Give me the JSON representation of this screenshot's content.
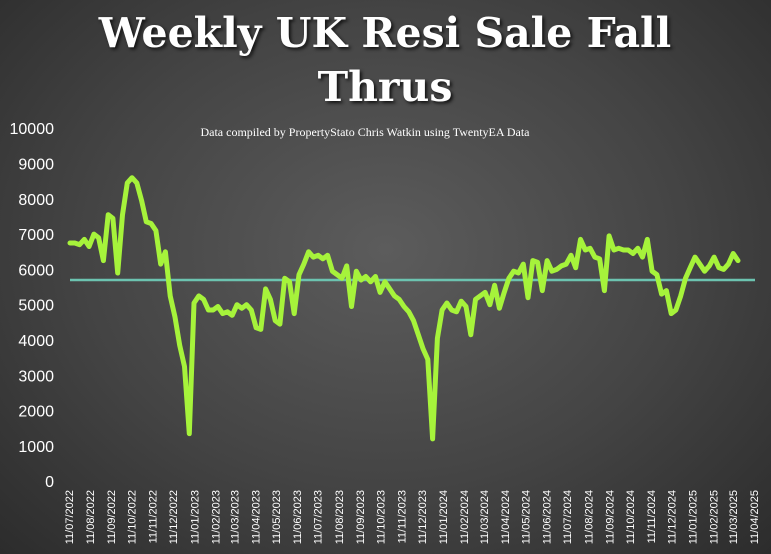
{
  "chart_data": {
    "type": "line",
    "title": "Weekly UK Resi Sale Fall Thrus",
    "subtitle": "Data compiled by PropertyStato Chris Watkin using TwentyEA Data",
    "x": [
      "2022-07-11",
      "2022-07-18",
      "2022-07-25",
      "2022-08-01",
      "2022-08-08",
      "2022-08-15",
      "2022-08-22",
      "2022-08-29",
      "2022-09-05",
      "2022-09-12",
      "2022-09-19",
      "2022-09-26",
      "2022-10-03",
      "2022-10-10",
      "2022-10-17",
      "2022-10-24",
      "2022-10-31",
      "2022-11-07",
      "2022-11-14",
      "2022-11-21",
      "2022-11-28",
      "2022-12-05",
      "2022-12-12",
      "2022-12-19",
      "2022-12-26",
      "2023-01-02",
      "2023-01-09",
      "2023-01-16",
      "2023-01-23",
      "2023-01-30",
      "2023-02-06",
      "2023-02-13",
      "2023-02-20",
      "2023-02-27",
      "2023-03-06",
      "2023-03-13",
      "2023-03-20",
      "2023-03-27",
      "2023-04-03",
      "2023-04-10",
      "2023-04-17",
      "2023-04-24",
      "2023-05-01",
      "2023-05-08",
      "2023-05-15",
      "2023-05-22",
      "2023-05-29",
      "2023-06-05",
      "2023-06-12",
      "2023-06-19",
      "2023-06-26",
      "2023-07-03",
      "2023-07-10",
      "2023-07-17",
      "2023-07-24",
      "2023-07-31",
      "2023-08-07",
      "2023-08-14",
      "2023-08-21",
      "2023-08-28",
      "2023-09-04",
      "2023-09-11",
      "2023-09-18",
      "2023-09-25",
      "2023-10-02",
      "2023-10-09",
      "2023-10-16",
      "2023-10-23",
      "2023-10-30",
      "2023-11-06",
      "2023-11-13",
      "2023-11-20",
      "2023-11-27",
      "2023-12-04",
      "2023-12-11",
      "2023-12-18",
      "2023-12-25",
      "2024-01-01",
      "2024-01-08",
      "2024-01-15",
      "2024-01-22",
      "2024-01-29",
      "2024-02-05",
      "2024-02-12",
      "2024-02-19",
      "2024-02-26",
      "2024-03-04",
      "2024-03-11",
      "2024-03-18",
      "2024-03-25",
      "2024-04-01",
      "2024-04-08",
      "2024-04-15",
      "2024-04-22",
      "2024-04-29",
      "2024-05-06",
      "2024-05-13",
      "2024-05-20",
      "2024-05-27",
      "2024-06-03",
      "2024-06-10",
      "2024-06-17",
      "2024-06-24",
      "2024-07-01",
      "2024-07-08",
      "2024-07-15",
      "2024-07-22",
      "2024-07-29",
      "2024-08-05",
      "2024-08-12",
      "2024-08-19",
      "2024-08-26",
      "2024-09-02",
      "2024-09-09",
      "2024-09-16",
      "2024-09-23",
      "2024-09-30",
      "2024-10-07",
      "2024-10-14",
      "2024-10-21",
      "2024-10-28",
      "2024-11-04",
      "2024-11-11",
      "2024-11-18",
      "2024-11-25",
      "2024-12-02",
      "2024-12-09",
      "2024-12-16",
      "2024-12-23",
      "2024-12-30",
      "2025-01-06",
      "2025-01-13",
      "2025-01-20",
      "2025-01-27",
      "2025-02-03",
      "2025-02-10",
      "2025-02-17",
      "2025-02-24",
      "2025-03-03",
      "2025-03-10",
      "2025-03-17"
    ],
    "series": [
      {
        "color": "#a6f33b",
        "values": [
          6800,
          6800,
          6750,
          6900,
          6700,
          7050,
          6950,
          6300,
          7600,
          7500,
          5950,
          7600,
          8500,
          8650,
          8500,
          8000,
          7400,
          7350,
          7150,
          6200,
          6550,
          5300,
          4700,
          3900,
          3300,
          1400,
          5100,
          5300,
          5200,
          4900,
          4900,
          5000,
          4800,
          4850,
          4750,
          5050,
          4950,
          5050,
          4900,
          4400,
          4350,
          5500,
          5200,
          4600,
          4500,
          5800,
          5700,
          4800,
          5900,
          6200,
          6550,
          6400,
          6450,
          6350,
          6450,
          6000,
          5900,
          5800,
          6150,
          5000,
          6000,
          5750,
          5850,
          5700,
          5850,
          5400,
          5700,
          5500,
          5300,
          5200,
          5000,
          4850,
          4600,
          4200,
          3800,
          3500,
          1250,
          4100,
          4900,
          5100,
          4900,
          4850,
          5150,
          5000,
          4200,
          5200,
          5300,
          5400,
          5050,
          5600,
          4950,
          5400,
          5800,
          6000,
          5950,
          6200,
          5250,
          6300,
          6250,
          5450,
          6300,
          6000,
          6050,
          6150,
          6200,
          6450,
          6100,
          6900,
          6600,
          6650,
          6400,
          6350,
          5450,
          7000,
          6600,
          6650,
          6600,
          6600,
          6500,
          6650,
          6400,
          6900,
          6000,
          5900,
          5350,
          5450,
          4800,
          4900,
          5300,
          5800,
          6100,
          6400,
          6200,
          6000,
          6150,
          6400,
          6100,
          6050,
          6200,
          6500,
          6300
        ]
      }
    ],
    "reference_line": {
      "value": 5750,
      "color": "#6cc3b0"
    },
    "ylim": [
      0,
      10000
    ],
    "yticks": [
      0,
      1000,
      2000,
      3000,
      4000,
      5000,
      6000,
      7000,
      8000,
      9000,
      10000
    ],
    "xlim": [
      "2022-07-11",
      "2025-04-11"
    ],
    "xticks": [
      {
        "value": "2022-07-11",
        "label": "11/07/2022"
      },
      {
        "value": "2022-08-11",
        "label": "11/08/2022"
      },
      {
        "value": "2022-09-11",
        "label": "11/09/2022"
      },
      {
        "value": "2022-10-11",
        "label": "11/10/2022"
      },
      {
        "value": "2022-11-11",
        "label": "11/11/2022"
      },
      {
        "value": "2022-12-11",
        "label": "11/12/2022"
      },
      {
        "value": "2023-01-11",
        "label": "11/01/2023"
      },
      {
        "value": "2023-02-11",
        "label": "11/02/2023"
      },
      {
        "value": "2023-03-11",
        "label": "11/03/2023"
      },
      {
        "value": "2023-04-11",
        "label": "11/04/2023"
      },
      {
        "value": "2023-05-11",
        "label": "11/05/2023"
      },
      {
        "value": "2023-06-11",
        "label": "11/06/2023"
      },
      {
        "value": "2023-07-11",
        "label": "11/07/2023"
      },
      {
        "value": "2023-08-11",
        "label": "11/08/2023"
      },
      {
        "value": "2023-09-11",
        "label": "11/09/2023"
      },
      {
        "value": "2023-10-11",
        "label": "11/10/2023"
      },
      {
        "value": "2023-11-11",
        "label": "11/11/2023"
      },
      {
        "value": "2023-12-11",
        "label": "11/12/2023"
      },
      {
        "value": "2024-01-11",
        "label": "11/01/2024"
      },
      {
        "value": "2024-02-11",
        "label": "11/02/2024"
      },
      {
        "value": "2024-03-11",
        "label": "11/03/2024"
      },
      {
        "value": "2024-04-11",
        "label": "11/04/2024"
      },
      {
        "value": "2024-05-11",
        "label": "11/05/2024"
      },
      {
        "value": "2024-06-11",
        "label": "11/06/2024"
      },
      {
        "value": "2024-07-11",
        "label": "11/07/2024"
      },
      {
        "value": "2024-08-11",
        "label": "11/08/2024"
      },
      {
        "value": "2024-09-11",
        "label": "11/09/2024"
      },
      {
        "value": "2024-10-11",
        "label": "11/10/2024"
      },
      {
        "value": "2024-11-11",
        "label": "11/11/2024"
      },
      {
        "value": "2024-12-11",
        "label": "11/12/2024"
      },
      {
        "value": "2025-01-11",
        "label": "11/01/2025"
      },
      {
        "value": "2025-02-11",
        "label": "11/02/2025"
      },
      {
        "value": "2025-03-11",
        "label": "11/03/2025"
      },
      {
        "value": "2025-04-11",
        "label": "11/04/2025"
      }
    ]
  }
}
